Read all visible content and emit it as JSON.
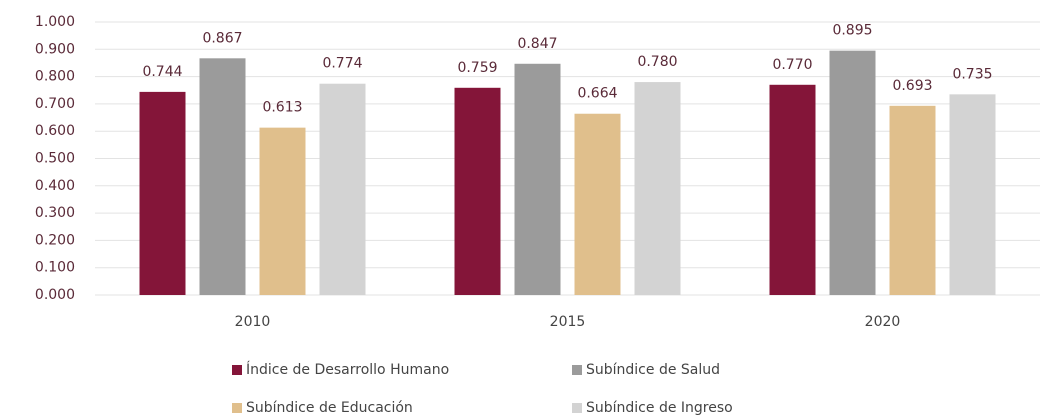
{
  "chart_data": {
    "type": "bar",
    "categories": [
      "2010",
      "2015",
      "2020"
    ],
    "series": [
      {
        "name": "Índice de Desarrollo Humano",
        "color": "#841539",
        "values": [
          0.744,
          0.759,
          0.77
        ],
        "value_labels": [
          "0.744",
          "0.759",
          "0.770"
        ]
      },
      {
        "name": "Subíndice de Salud",
        "color": "#9b9b9b",
        "values": [
          0.867,
          0.847,
          0.895
        ],
        "value_labels": [
          "0.867",
          "0.847",
          "0.895"
        ]
      },
      {
        "name": "Subíndice de Educación",
        "color": "#e0bf8c",
        "values": [
          0.613,
          0.664,
          0.693
        ],
        "value_labels": [
          "0.613",
          "0.664",
          "0.693"
        ]
      },
      {
        "name": "Subíndice de Ingreso",
        "color": "#d3d3d3",
        "values": [
          0.774,
          0.78,
          0.735
        ],
        "value_labels": [
          "0.774",
          "0.780",
          "0.735"
        ]
      }
    ],
    "ylim": [
      0,
      1
    ],
    "yticks": [
      {
        "value": 0,
        "label": "0.000"
      },
      {
        "value": 0.1,
        "label": "0.100"
      },
      {
        "value": 0.2,
        "label": "0.200"
      },
      {
        "value": 0.3,
        "label": "0.300"
      },
      {
        "value": 0.4,
        "label": "0.400"
      },
      {
        "value": 0.5,
        "label": "0.500"
      },
      {
        "value": 0.6,
        "label": "0.600"
      },
      {
        "value": 0.7,
        "label": "0.700"
      },
      {
        "value": 0.8,
        "label": "0.800"
      },
      {
        "value": 0.9,
        "label": "0.900"
      },
      {
        "value": 1,
        "label": "1.000"
      }
    ],
    "grid": true,
    "legend": "bottom"
  }
}
